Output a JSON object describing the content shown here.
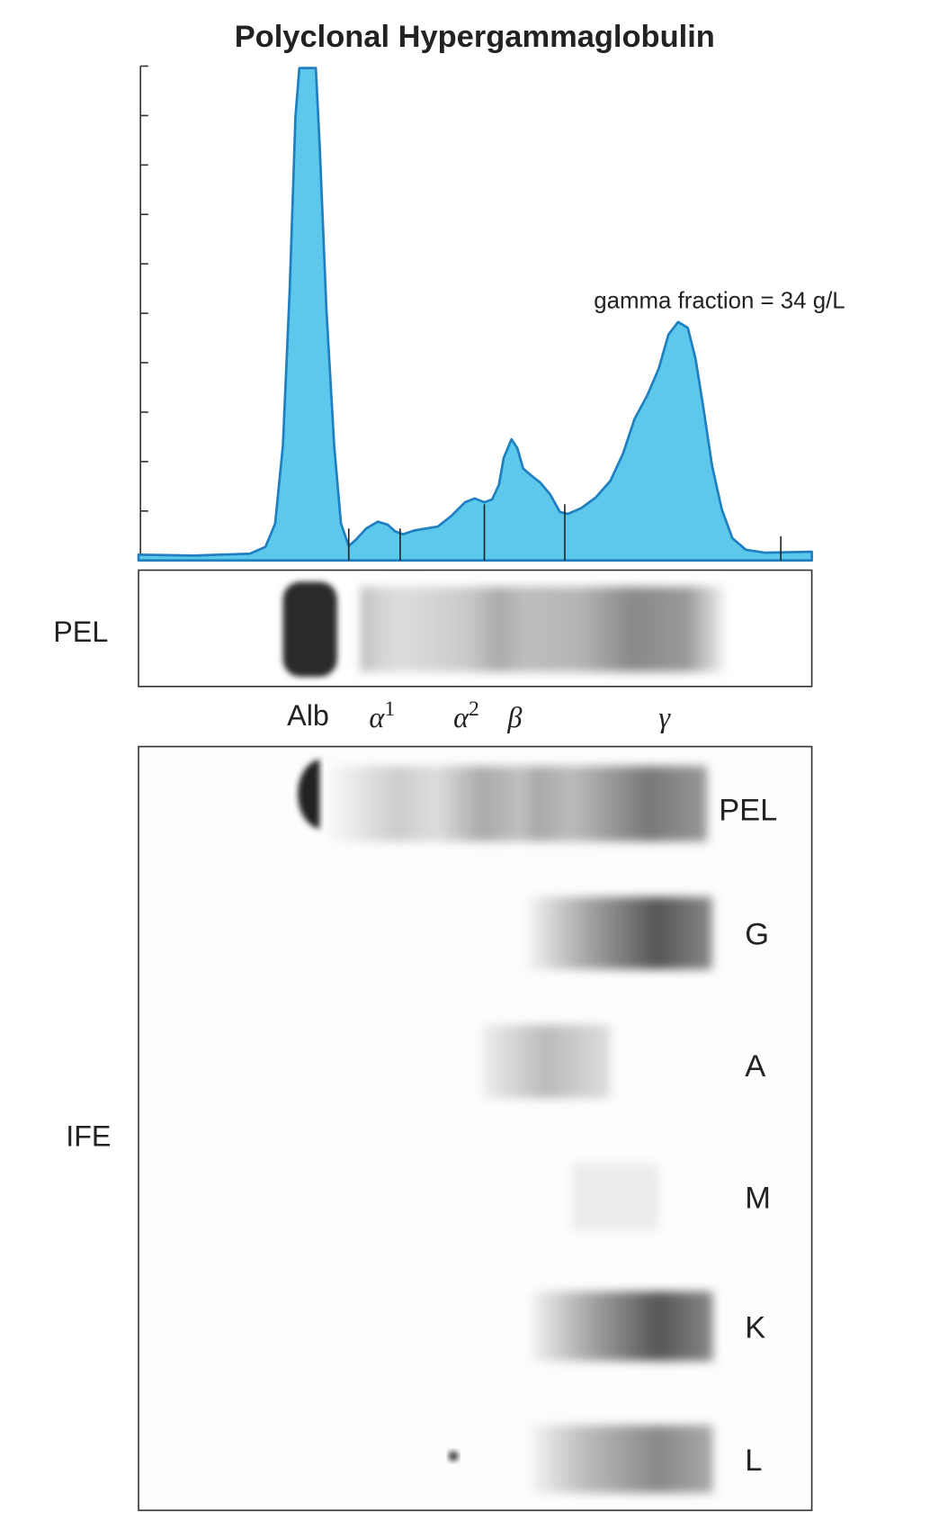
{
  "title": "Polyclonal Hypergammaglobulin",
  "annotation": "gamma fraction = 34 g/L",
  "pel_strip": {
    "label": "PEL"
  },
  "fractions": {
    "alb": "Alb",
    "alpha1": {
      "symbol": "α",
      "sup": "1"
    },
    "alpha2": {
      "symbol": "α",
      "sup": "2"
    },
    "beta": "β",
    "gamma": "γ"
  },
  "ife": {
    "label": "IFE",
    "lanes": [
      "PEL",
      "G",
      "A",
      "M",
      "K",
      "L"
    ]
  }
}
